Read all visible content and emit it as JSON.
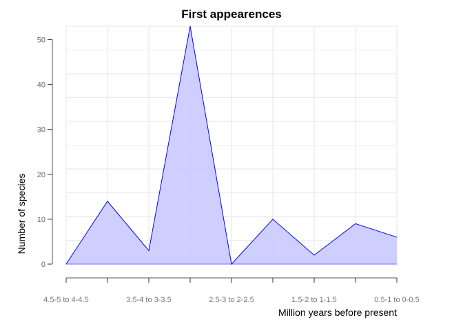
{
  "chart_data": {
    "type": "area",
    "title": "First appearences",
    "xlabel": "Million years before present",
    "ylabel": "Number of species",
    "categories": [
      "4.5-5 to 4-4.5",
      "",
      "3.5-4 to 3-3.5",
      "",
      "2.5-3 to 2-2.5",
      "",
      "1.5-2 to 1-1.5",
      "",
      "0.5-1 to 0-0.5"
    ],
    "values": [
      0,
      14,
      3,
      53,
      0,
      10,
      2,
      9,
      6
    ],
    "ylim": [
      0,
      53
    ],
    "yticks": [
      0,
      10,
      20,
      30,
      40,
      50
    ],
    "grid": true,
    "line_color": "#0000ff",
    "fill_color": "#ccccff"
  }
}
